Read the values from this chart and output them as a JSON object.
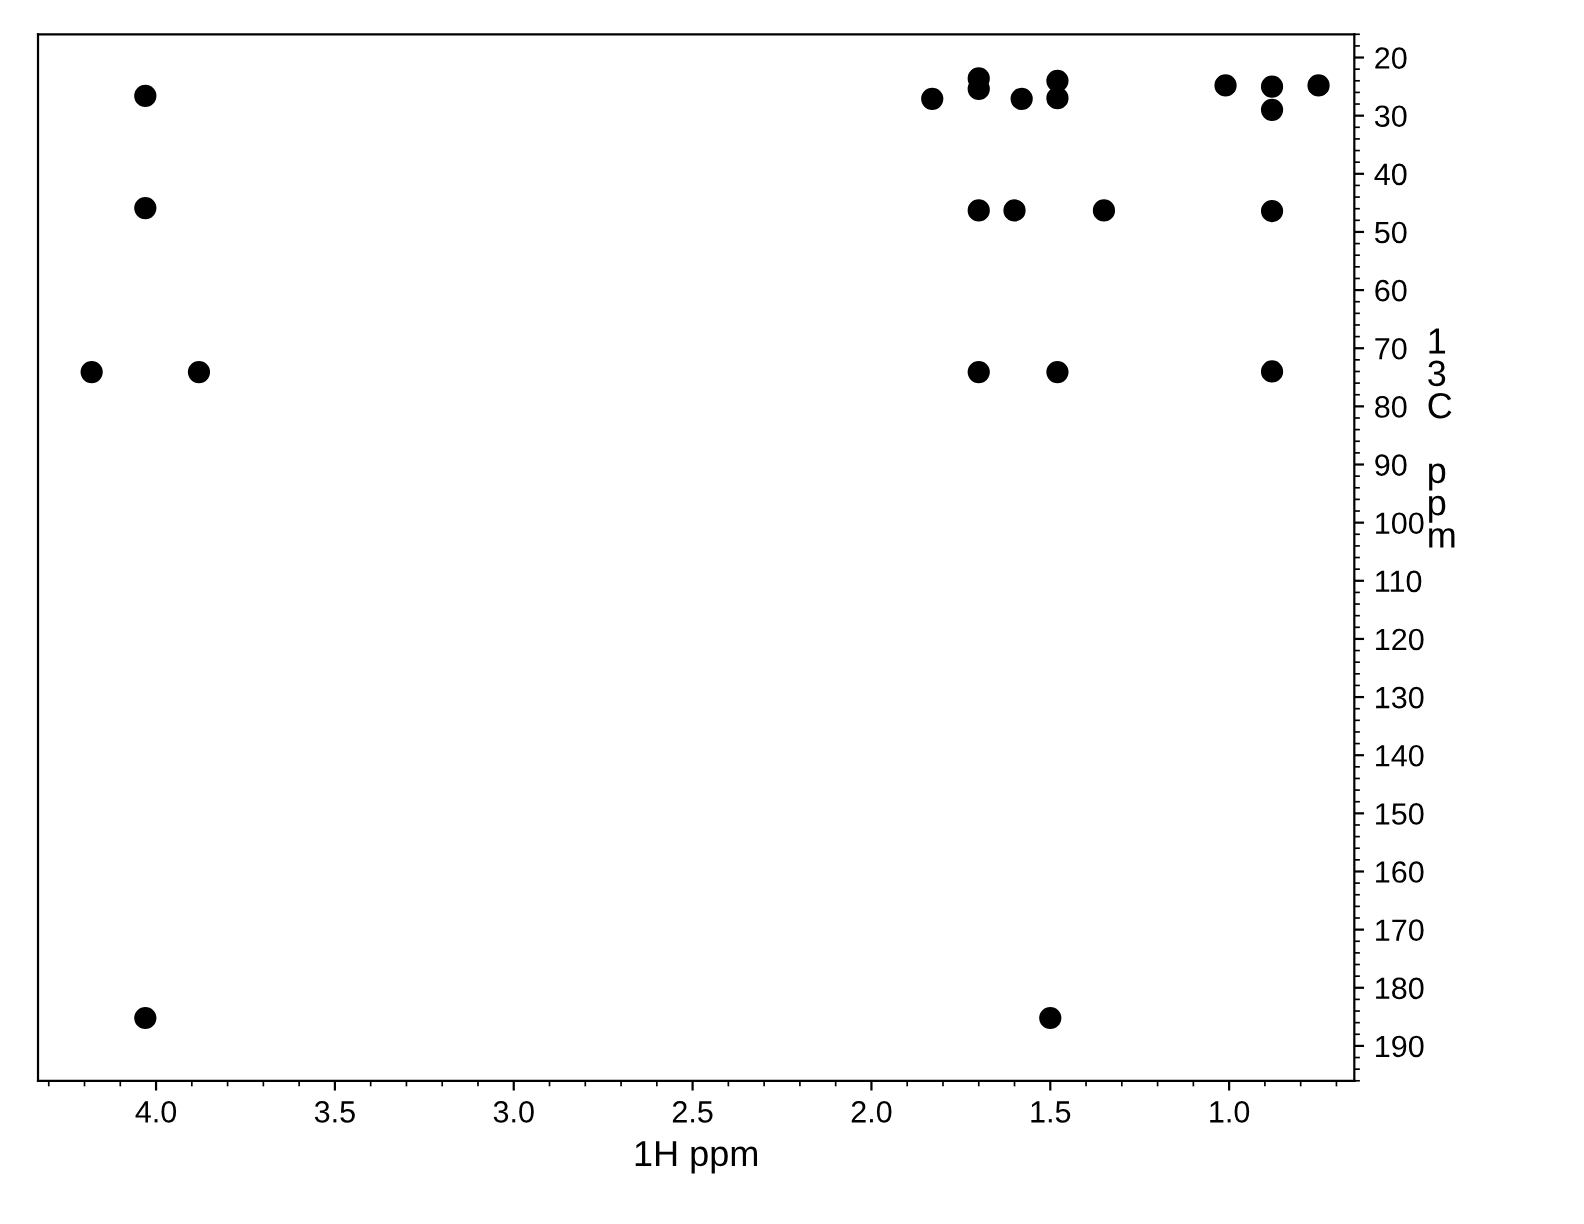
{
  "chart_data": {
    "type": "scatter",
    "xlabel": "1H ppm",
    "ylabel": "13C ppm",
    "xlim": [
      4.33,
      0.65
    ],
    "ylim": [
      196,
      16
    ],
    "xticks": [
      {
        "value": 4.0,
        "label": "4.0"
      },
      {
        "value": 3.5,
        "label": "3.5"
      },
      {
        "value": 3.0,
        "label": "3.0"
      },
      {
        "value": 2.5,
        "label": "2.5"
      },
      {
        "value": 2.0,
        "label": "2.0"
      },
      {
        "value": 1.5,
        "label": "1.5"
      },
      {
        "value": 1.0,
        "label": "1.0"
      }
    ],
    "yticks": [
      20,
      30,
      40,
      50,
      60,
      70,
      80,
      90,
      100,
      110,
      120,
      130,
      140,
      150,
      160,
      170,
      180,
      190
    ],
    "grid": false,
    "legend": false,
    "marker": "circle",
    "series": [
      {
        "color": "#000000",
        "x": [
          4.03,
          4.03,
          4.18,
          3.88,
          4.03,
          1.83,
          1.7,
          1.7,
          1.7,
          1.6,
          1.58,
          1.48,
          1.48,
          1.35,
          1.7,
          1.48,
          1.5,
          1.01,
          0.88,
          0.88,
          0.88,
          0.88,
          0.75
        ],
        "values": [
          26.6,
          45.9,
          74.1,
          74.1,
          185.2,
          27.1,
          23.6,
          25.4,
          46.3,
          46.3,
          27.1,
          24,
          27,
          46.3,
          74.1,
          74.1,
          185.2,
          24.8,
          25,
          29,
          46.4,
          74,
          24.8
        ]
      }
    ]
  }
}
